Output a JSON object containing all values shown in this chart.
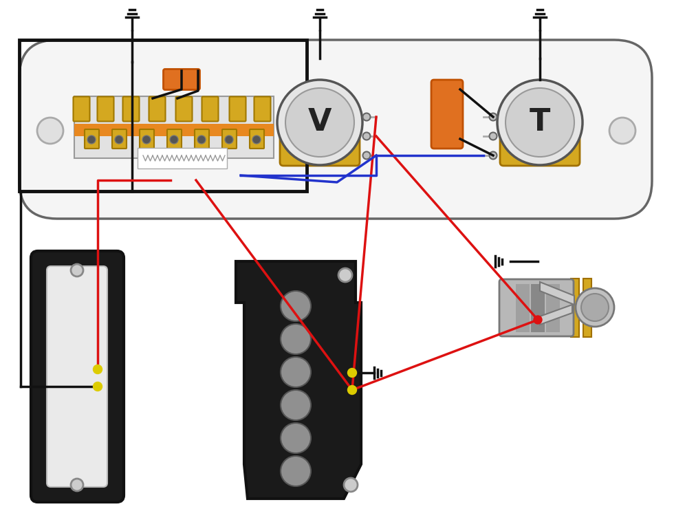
{
  "bg": "#ffffff",
  "dark": "#111111",
  "gray": "#888888",
  "lgray": "#cccccc",
  "vlgray": "#e8e8e8",
  "dgray": "#555555",
  "mgray": "#999999",
  "pot_gold": "#d4a820",
  "pot_gold_dark": "#a07000",
  "pot_gold_edge": "#c8970a",
  "orange": "#e07020",
  "orange_dark": "#c05000",
  "red": "#dd1111",
  "blue": "#2233cc",
  "yellow": "#ddcc00",
  "plate_fill": "#f5f5f5",
  "switch_fill": "#e0e0e0",
  "switch_stripe": "#e88820",
  "jack_gray": "#b0b0b0",
  "jack_dark": "#888888"
}
